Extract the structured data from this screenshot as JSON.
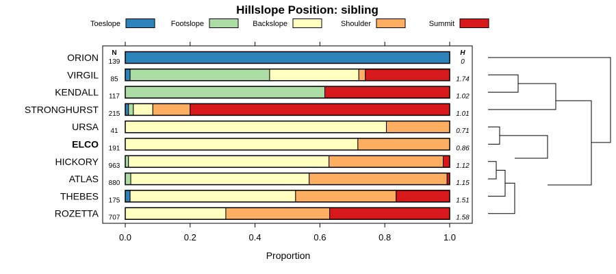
{
  "chart_data": {
    "type": "bar",
    "orientation": "horizontal-stacked",
    "title": "Hillslope Position: sibling",
    "xlabel": "Proportion",
    "xlim": [
      0,
      1
    ],
    "x_ticks": [
      "0.0",
      "0.2",
      "0.4",
      "0.6",
      "0.8",
      "1.0"
    ],
    "n_header": "N",
    "h_header": "H",
    "legend_position": "top",
    "categories": [
      "ORION",
      "VIRGIL",
      "KENDALL",
      "STRONGHURST",
      "URSA",
      "ELCO",
      "HICKORY",
      "ATLAS",
      "THEBES",
      "ROZETTA"
    ],
    "highlighted_category": "ELCO",
    "n": [
      "139",
      "85",
      "117",
      "215",
      "41",
      "191",
      "963",
      "880",
      "175",
      "707"
    ],
    "h": [
      "0",
      "1.74",
      "1.02",
      "1.01",
      "0.71",
      "0.86",
      "1.12",
      "1.15",
      "1.51",
      "1.58"
    ],
    "series": [
      {
        "name": "Toeslope",
        "color": "#2b83ba",
        "values": [
          1.0,
          0.015,
          0.0,
          0.01,
          0.0,
          0.0,
          0.0,
          0.0,
          0.015,
          0.0
        ]
      },
      {
        "name": "Footslope",
        "color": "#abdda4",
        "values": [
          0.0,
          0.43,
          0.615,
          0.015,
          0.0,
          0.0,
          0.01,
          0.017,
          0.0,
          0.0
        ]
      },
      {
        "name": "Backslope",
        "color": "#ffffbf",
        "values": [
          0.0,
          0.275,
          0.0,
          0.06,
          0.805,
          0.717,
          0.618,
          0.55,
          0.51,
          0.31
        ]
      },
      {
        "name": "Shoulder",
        "color": "#fdae61",
        "values": [
          0.0,
          0.02,
          0.0,
          0.115,
          0.195,
          0.283,
          0.352,
          0.425,
          0.31,
          0.32
        ]
      },
      {
        "name": "Summit",
        "color": "#d7191c",
        "values": [
          0.0,
          0.26,
          0.385,
          0.8,
          0.0,
          0.0,
          0.02,
          0.008,
          0.165,
          0.37
        ]
      }
    ],
    "dendrogram": true
  }
}
